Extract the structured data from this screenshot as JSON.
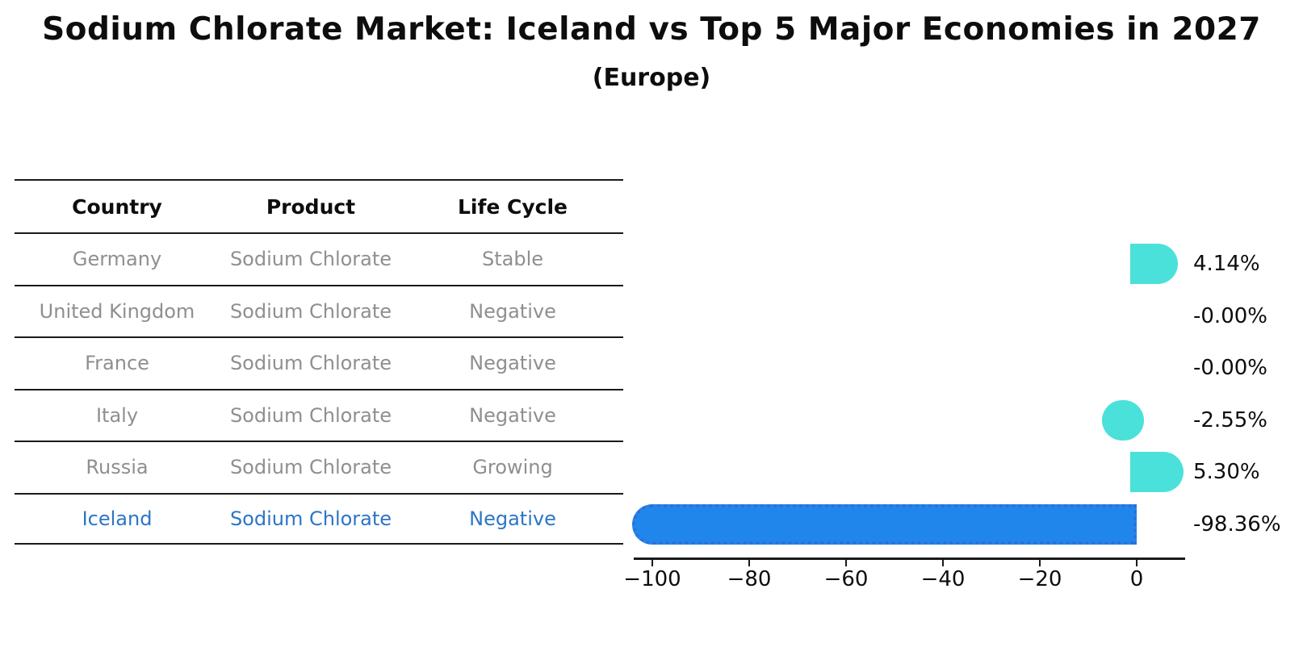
{
  "page": {
    "title": "Sodium Chlorate Market: Iceland vs Top 5 Major Economies in 2027",
    "subtitle": "(Europe)"
  },
  "table": {
    "headers": [
      "Country",
      "Product",
      "Life Cycle"
    ],
    "rows": [
      {
        "country": "Germany",
        "product": "Sodium Chlorate",
        "life_cycle": "Stable",
        "highlight": false
      },
      {
        "country": "United Kingdom",
        "product": "Sodium Chlorate",
        "life_cycle": "Negative",
        "highlight": false
      },
      {
        "country": "France",
        "product": "Sodium Chlorate",
        "life_cycle": "Negative",
        "highlight": false
      },
      {
        "country": "Italy",
        "product": "Sodium Chlorate",
        "life_cycle": "Negative",
        "highlight": false
      },
      {
        "country": "Russia",
        "product": "Sodium Chlorate",
        "life_cycle": "Growing",
        "highlight": false
      },
      {
        "country": "Iceland",
        "product": "Sodium Chlorate",
        "life_cycle": "Negative",
        "highlight": true
      }
    ]
  },
  "chart_data": {
    "type": "bar",
    "orientation": "horizontal",
    "title": "Sodium Chlorate Market: Iceland vs Top 5 Major Economies in 2027",
    "subtitle": "(Europe)",
    "categories": [
      "Germany",
      "United Kingdom",
      "France",
      "Italy",
      "Russia",
      "Iceland"
    ],
    "values": [
      4.14,
      -0.0,
      -0.0,
      -2.55,
      5.3,
      -98.36
    ],
    "value_labels": [
      "4.14%",
      "-0.00%",
      "-0.00%",
      "-2.55%",
      "5.30%",
      "-98.36%"
    ],
    "value_unit": "percent",
    "highlight_index": 5,
    "x_ticks": [
      -100,
      -80,
      -60,
      -40,
      -20,
      0
    ],
    "x_tick_labels": [
      "−100",
      "−80",
      "−60",
      "−40",
      "−20",
      "0"
    ],
    "xlim": [
      -104,
      10
    ],
    "grid": false,
    "legend": false,
    "colors": {
      "default_bar": "#4ae1da",
      "highlight_bar": "#2186eb",
      "highlight_bar_edge": "#2f6fd8",
      "highlight_text": "#2d75c6",
      "muted_text": "#8f8f8f",
      "axis": "#1a1a1a"
    }
  }
}
